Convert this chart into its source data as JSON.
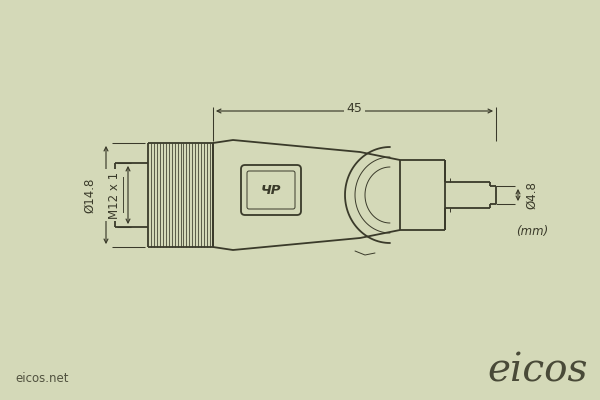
{
  "bg_color": "#d4d9b8",
  "line_color": "#3a3a2a",
  "dim_color": "#3a3a2a",
  "dim_45": "45",
  "dim_148": "Ø14.8",
  "dim_m12": "M12 x 1",
  "dim_48": "Ø4.8",
  "dim_mm": "(mm)",
  "watermark_left": "eicos.net",
  "watermark_right": "eicos",
  "lw": 1.3,
  "lw_thin": 0.7,
  "lw_knurl": 0.55
}
